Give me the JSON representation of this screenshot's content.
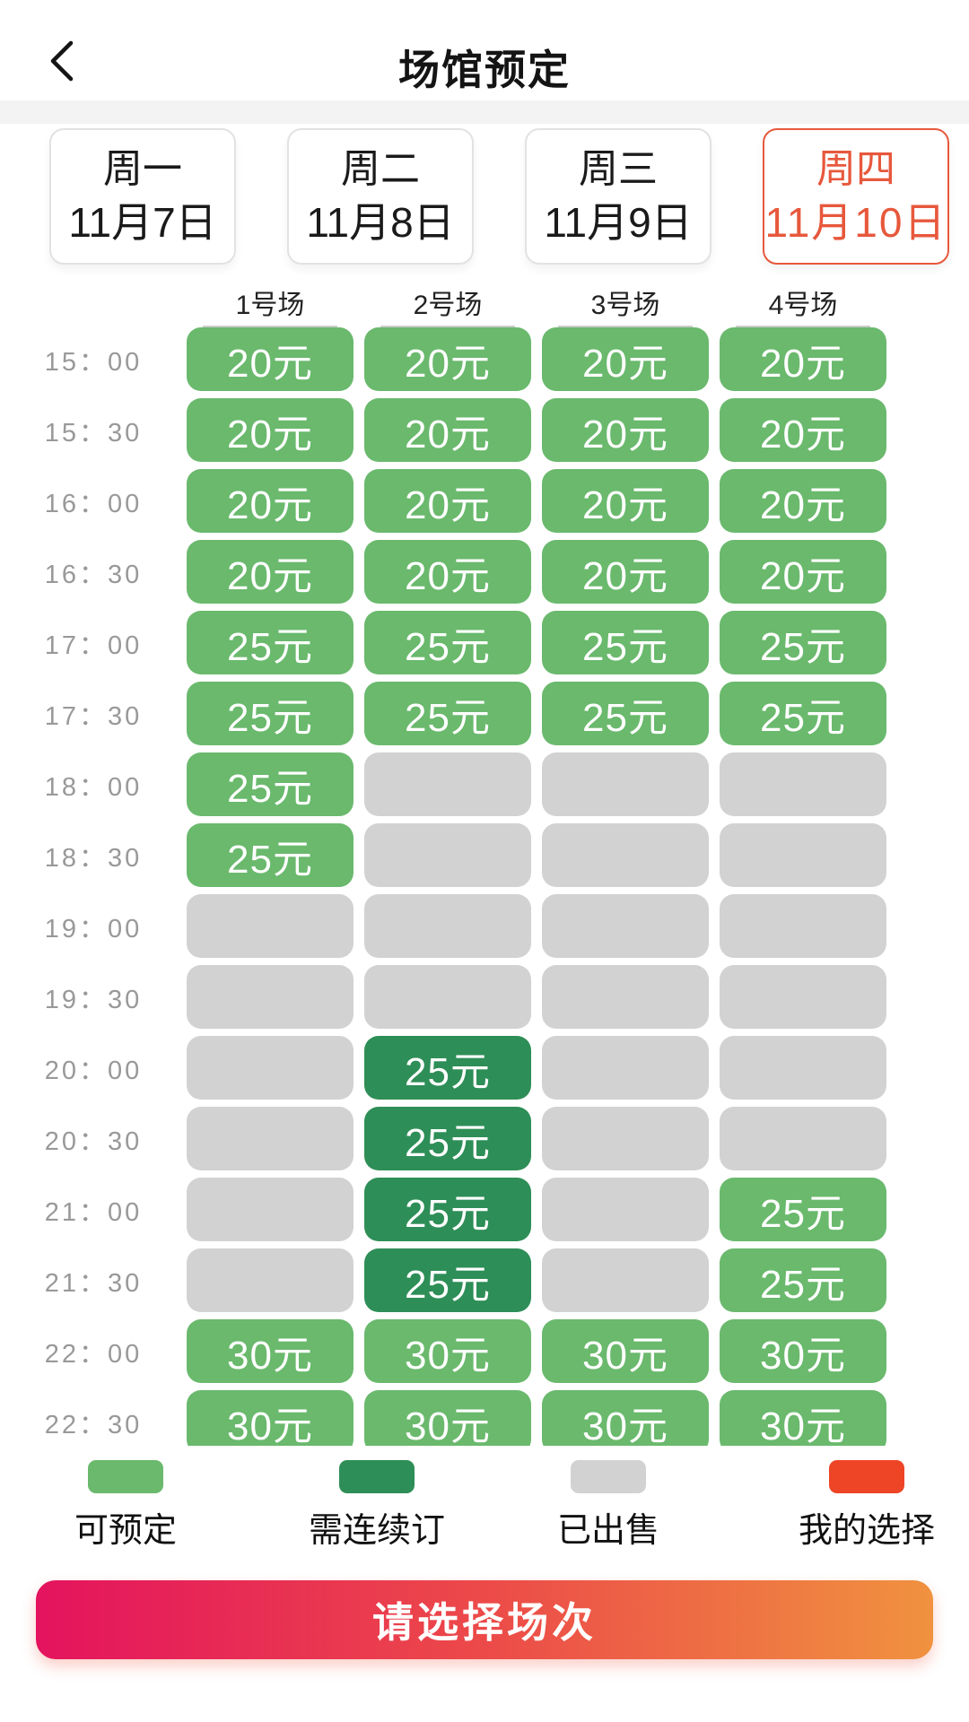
{
  "header": {
    "title": "场馆预定",
    "back_icon": "chevron-left"
  },
  "date_tabs": [
    {
      "weekday": "周一",
      "date": "11月7日",
      "selected": false
    },
    {
      "weekday": "周二",
      "date": "11月8日",
      "selected": false
    },
    {
      "weekday": "周三",
      "date": "11月9日",
      "selected": false
    },
    {
      "weekday": "周四",
      "date": "11月10日",
      "selected": true
    }
  ],
  "courts": [
    "1号场",
    "2号场",
    "3号场",
    "4号场"
  ],
  "schedule": {
    "rows": [
      {
        "time": "15：00",
        "cells": [
          {
            "state": "available",
            "price": "20元"
          },
          {
            "state": "available",
            "price": "20元"
          },
          {
            "state": "available",
            "price": "20元"
          },
          {
            "state": "available",
            "price": "20元"
          }
        ]
      },
      {
        "time": "15：30",
        "cells": [
          {
            "state": "available",
            "price": "20元"
          },
          {
            "state": "available",
            "price": "20元"
          },
          {
            "state": "available",
            "price": "20元"
          },
          {
            "state": "available",
            "price": "20元"
          }
        ]
      },
      {
        "time": "16：00",
        "cells": [
          {
            "state": "available",
            "price": "20元"
          },
          {
            "state": "available",
            "price": "20元"
          },
          {
            "state": "available",
            "price": "20元"
          },
          {
            "state": "available",
            "price": "20元"
          }
        ]
      },
      {
        "time": "16：30",
        "cells": [
          {
            "state": "available",
            "price": "20元"
          },
          {
            "state": "available",
            "price": "20元"
          },
          {
            "state": "available",
            "price": "20元"
          },
          {
            "state": "available",
            "price": "20元"
          }
        ]
      },
      {
        "time": "17：00",
        "cells": [
          {
            "state": "available",
            "price": "25元"
          },
          {
            "state": "available",
            "price": "25元"
          },
          {
            "state": "available",
            "price": "25元"
          },
          {
            "state": "available",
            "price": "25元"
          }
        ]
      },
      {
        "time": "17：30",
        "cells": [
          {
            "state": "available",
            "price": "25元"
          },
          {
            "state": "available",
            "price": "25元"
          },
          {
            "state": "available",
            "price": "25元"
          },
          {
            "state": "available",
            "price": "25元"
          }
        ]
      },
      {
        "time": "18：00",
        "cells": [
          {
            "state": "available",
            "price": "25元"
          },
          {
            "state": "sold",
            "price": ""
          },
          {
            "state": "sold",
            "price": ""
          },
          {
            "state": "sold",
            "price": ""
          }
        ]
      },
      {
        "time": "18：30",
        "cells": [
          {
            "state": "available",
            "price": "25元"
          },
          {
            "state": "sold",
            "price": ""
          },
          {
            "state": "sold",
            "price": ""
          },
          {
            "state": "sold",
            "price": ""
          }
        ]
      },
      {
        "time": "19：00",
        "cells": [
          {
            "state": "sold",
            "price": ""
          },
          {
            "state": "sold",
            "price": ""
          },
          {
            "state": "sold",
            "price": ""
          },
          {
            "state": "sold",
            "price": ""
          }
        ]
      },
      {
        "time": "19：30",
        "cells": [
          {
            "state": "sold",
            "price": ""
          },
          {
            "state": "sold",
            "price": ""
          },
          {
            "state": "sold",
            "price": ""
          },
          {
            "state": "sold",
            "price": ""
          }
        ]
      },
      {
        "time": "20：00",
        "cells": [
          {
            "state": "sold",
            "price": ""
          },
          {
            "state": "chain",
            "price": "25元"
          },
          {
            "state": "sold",
            "price": ""
          },
          {
            "state": "sold",
            "price": ""
          }
        ]
      },
      {
        "time": "20：30",
        "cells": [
          {
            "state": "sold",
            "price": ""
          },
          {
            "state": "chain",
            "price": "25元"
          },
          {
            "state": "sold",
            "price": ""
          },
          {
            "state": "sold",
            "price": ""
          }
        ]
      },
      {
        "time": "21：00",
        "cells": [
          {
            "state": "sold",
            "price": ""
          },
          {
            "state": "chain",
            "price": "25元"
          },
          {
            "state": "sold",
            "price": ""
          },
          {
            "state": "available",
            "price": "25元"
          }
        ]
      },
      {
        "time": "21：30",
        "cells": [
          {
            "state": "sold",
            "price": ""
          },
          {
            "state": "chain",
            "price": "25元"
          },
          {
            "state": "sold",
            "price": ""
          },
          {
            "state": "available",
            "price": "25元"
          }
        ]
      },
      {
        "time": "22：00",
        "cells": [
          {
            "state": "available",
            "price": "30元"
          },
          {
            "state": "available",
            "price": "30元"
          },
          {
            "state": "available",
            "price": "30元"
          },
          {
            "state": "available",
            "price": "30元"
          }
        ]
      },
      {
        "time": "22：30",
        "cells": [
          {
            "state": "available",
            "price": "30元"
          },
          {
            "state": "available",
            "price": "30元"
          },
          {
            "state": "available",
            "price": "30元"
          },
          {
            "state": "available",
            "price": "30元"
          }
        ]
      }
    ]
  },
  "legend": [
    {
      "label": "可预定",
      "state": "available"
    },
    {
      "label": "需连续订",
      "state": "chain"
    },
    {
      "label": "已出售",
      "state": "sold"
    },
    {
      "label": "我的选择",
      "state": "selected"
    }
  ],
  "action_button": {
    "label": "请选择场次"
  },
  "colors": {
    "available": "#6ab96d",
    "chain": "#2e8e57",
    "sold": "#d2d2d2",
    "selected": "#ee4527",
    "tab_active": "#e7583c",
    "button_gradient": [
      "#e4135e",
      "#ec4a49",
      "#f0923f"
    ]
  }
}
